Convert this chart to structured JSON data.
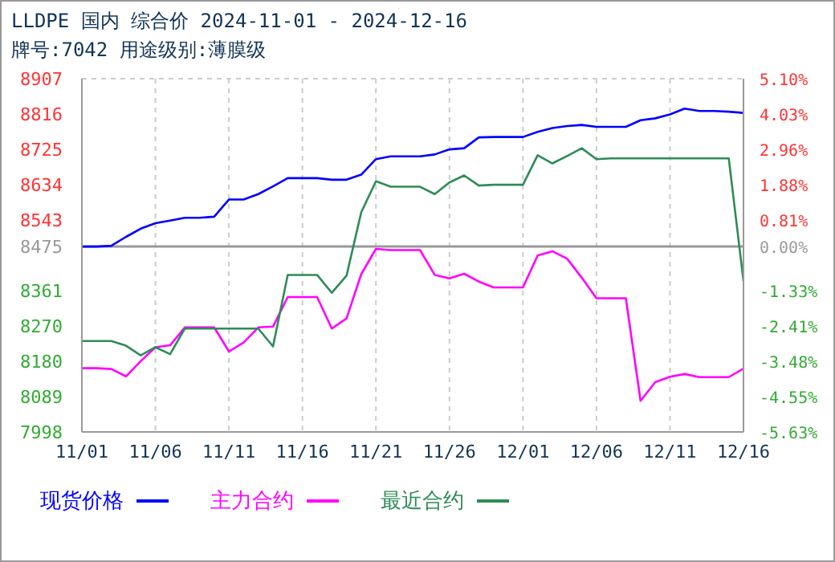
{
  "chart_data": {
    "type": "line",
    "title": "LLDPE 国内 综合价 2024-11-01 - 2024-12-16",
    "subtitle": "牌号:7042 用途级别:薄膜级",
    "x": [
      "2024-11-01",
      "2024-11-02",
      "2024-11-03",
      "2024-11-04",
      "2024-11-05",
      "2024-11-06",
      "2024-11-07",
      "2024-11-08",
      "2024-11-09",
      "2024-11-10",
      "2024-11-11",
      "2024-11-12",
      "2024-11-13",
      "2024-11-14",
      "2024-11-15",
      "2024-11-16",
      "2024-11-17",
      "2024-11-18",
      "2024-11-19",
      "2024-11-20",
      "2024-11-21",
      "2024-11-22",
      "2024-11-23",
      "2024-11-24",
      "2024-11-25",
      "2024-11-26",
      "2024-11-27",
      "2024-11-28",
      "2024-11-29",
      "2024-11-30",
      "2024-12-01",
      "2024-12-02",
      "2024-12-03",
      "2024-12-04",
      "2024-12-05",
      "2024-12-06",
      "2024-12-07",
      "2024-12-08",
      "2024-12-09",
      "2024-12-10",
      "2024-12-11",
      "2024-12-12",
      "2024-12-13",
      "2024-12-14",
      "2024-12-15",
      "2024-12-16"
    ],
    "series": [
      {
        "name": "现货价格",
        "color": "#0000ff",
        "values": [
          8475,
          8475,
          8477,
          8500,
          8521,
          8535,
          8542,
          8549,
          8549,
          8552,
          8596,
          8596,
          8610,
          8630,
          8651,
          8651,
          8651,
          8647,
          8647,
          8660,
          8700,
          8707,
          8707,
          8707,
          8712,
          8725,
          8728,
          8756,
          8757,
          8757,
          8757,
          8770,
          8780,
          8785,
          8788,
          8783,
          8783,
          8783,
          8800,
          8805,
          8815,
          8830,
          8824,
          8824,
          8822,
          8819
        ]
      },
      {
        "name": "主力合约",
        "color": "#ff00ff",
        "values": [
          8162,
          8162,
          8160,
          8141,
          8180,
          8216,
          8221,
          8267,
          8267,
          8267,
          8205,
          8228,
          8267,
          8269,
          8345,
          8345,
          8345,
          8264,
          8290,
          8404,
          8469,
          8466,
          8466,
          8466,
          8402,
          8393,
          8405,
          8385,
          8370,
          8370,
          8370,
          8452,
          8463,
          8444,
          8395,
          8342,
          8342,
          8342,
          8078,
          8126,
          8140,
          8147,
          8139,
          8139,
          8139,
          8161
        ]
      },
      {
        "name": "最近合约",
        "color": "#2e8b57",
        "values": [
          8232,
          8232,
          8232,
          8220,
          8195,
          8216,
          8198,
          8264,
          8264,
          8264,
          8264,
          8264,
          8264,
          8218,
          8402,
          8402,
          8402,
          8356,
          8400,
          8563,
          8643,
          8629,
          8629,
          8629,
          8610,
          8640,
          8658,
          8632,
          8634,
          8634,
          8634,
          8710,
          8689,
          8708,
          8728,
          8700,
          8702,
          8702,
          8702,
          8702,
          8702,
          8702,
          8702,
          8702,
          8702,
          8386
        ]
      }
    ],
    "xlim": [
      "2024-11-01",
      "2024-12-16"
    ],
    "xticks": [
      {
        "value": "2024-11-01",
        "label": "11/01"
      },
      {
        "value": "2024-11-06",
        "label": "11/06"
      },
      {
        "value": "2024-11-11",
        "label": "11/11"
      },
      {
        "value": "2024-11-16",
        "label": "11/16"
      },
      {
        "value": "2024-11-21",
        "label": "11/21"
      },
      {
        "value": "2024-11-26",
        "label": "11/26"
      },
      {
        "value": "2024-12-01",
        "label": "12/01"
      },
      {
        "value": "2024-12-06",
        "label": "12/06"
      },
      {
        "value": "2024-12-11",
        "label": "12/11"
      },
      {
        "value": "2024-12-16",
        "label": "12/16"
      }
    ],
    "ylim": [
      7998,
      8907
    ],
    "yticks": [
      7998,
      8089,
      8180,
      8270,
      8361,
      8475,
      8543,
      8634,
      8725,
      8816,
      8907
    ],
    "y2lim": [
      -5.63,
      5.1
    ],
    "y2ticks": [
      {
        "value": -5.63,
        "label": "-5.63%"
      },
      {
        "value": -4.55,
        "label": "-4.55%"
      },
      {
        "value": -3.48,
        "label": "-3.48%"
      },
      {
        "value": -2.41,
        "label": "-2.41%"
      },
      {
        "value": -1.33,
        "label": "-1.33%"
      },
      {
        "value": 0,
        "label": "0.00%"
      },
      {
        "value": 0.81,
        "label": "0.81%"
      },
      {
        "value": 1.88,
        "label": "1.88%"
      },
      {
        "value": 2.96,
        "label": "2.96%"
      },
      {
        "value": 4.03,
        "label": "4.03%"
      },
      {
        "value": 5.1,
        "label": "5.10%"
      }
    ],
    "ref_lines": [
      {
        "axis": "y",
        "value": 8475,
        "color": "#999999"
      }
    ],
    "grid": true,
    "legend": "bottom",
    "marker": "none",
    "line_style": "solid"
  }
}
